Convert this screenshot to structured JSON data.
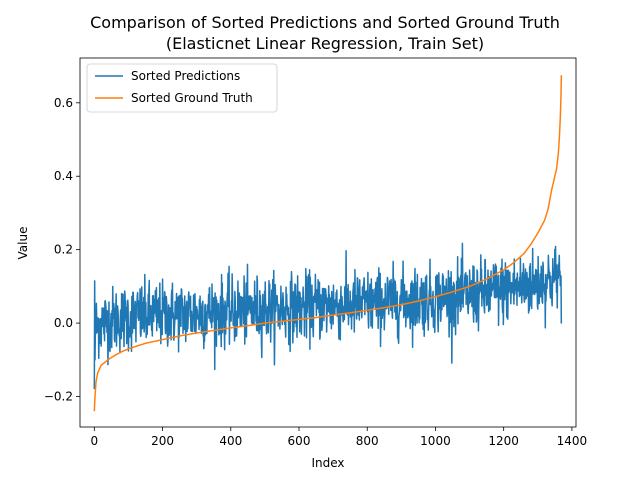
{
  "chart_data": {
    "type": "line",
    "title": "Comparison of Sorted Predictions and Sorted Ground Truth",
    "subtitle": "(Elasticnet Linear Regression, Train Set)",
    "xlabel": "Index",
    "ylabel": "Value",
    "xlim": [
      -42,
      1412
    ],
    "ylim": [
      -0.283,
      0.722
    ],
    "x_ticks": [
      0,
      200,
      400,
      600,
      800,
      1000,
      1200,
      1400
    ],
    "x_tick_labels": [
      "0",
      "200",
      "400",
      "600",
      "800",
      "1000",
      "1200",
      "1400"
    ],
    "y_ticks": [
      -0.2,
      0.0,
      0.2,
      0.4,
      0.6
    ],
    "y_tick_labels": [
      "−0.2",
      "0.0",
      "0.2",
      "0.4",
      "0.6"
    ],
    "legend_position": "top-left",
    "grid": false,
    "n_points": 1370,
    "series": [
      {
        "name": "Sorted Predictions",
        "color": "#1f77b4",
        "x": [
          0,
          5,
          10,
          20,
          40,
          60,
          80,
          100,
          150,
          200,
          250,
          300,
          350,
          400,
          450,
          500,
          550,
          600,
          650,
          700,
          750,
          800,
          850,
          900,
          950,
          1000,
          1050,
          1100,
          1150,
          1200,
          1250,
          1300,
          1340,
          1369
        ],
        "trend": [
          -0.01,
          -0.01,
          -0.005,
          0.0,
          0.005,
          0.01,
          0.012,
          0.015,
          0.02,
          0.022,
          0.025,
          0.027,
          0.03,
          0.032,
          0.035,
          0.037,
          0.04,
          0.042,
          0.045,
          0.048,
          0.05,
          0.053,
          0.056,
          0.06,
          0.063,
          0.068,
          0.072,
          0.077,
          0.082,
          0.09,
          0.1,
          0.11,
          0.12,
          0.13
        ],
        "noise_std": 0.045,
        "max": 0.265,
        "min": -0.175
      },
      {
        "name": "Sorted Ground Truth",
        "color": "#ff7f0e",
        "x": [
          0,
          2,
          5,
          10,
          20,
          40,
          60,
          80,
          100,
          150,
          200,
          250,
          300,
          350,
          400,
          450,
          500,
          550,
          600,
          650,
          700,
          750,
          800,
          850,
          900,
          950,
          1000,
          1050,
          1100,
          1150,
          1200,
          1230,
          1260,
          1280,
          1300,
          1320,
          1330,
          1340,
          1350,
          1355,
          1360,
          1363,
          1366,
          1368,
          1369
        ],
        "y": [
          -0.24,
          -0.2,
          -0.16,
          -0.135,
          -0.115,
          -0.1,
          -0.088,
          -0.078,
          -0.07,
          -0.055,
          -0.045,
          -0.035,
          -0.027,
          -0.02,
          -0.013,
          -0.007,
          0.0,
          0.005,
          0.01,
          0.015,
          0.022,
          0.028,
          0.035,
          0.042,
          0.05,
          0.06,
          0.072,
          0.085,
          0.1,
          0.12,
          0.145,
          0.165,
          0.19,
          0.215,
          0.245,
          0.28,
          0.31,
          0.36,
          0.4,
          0.42,
          0.46,
          0.5,
          0.56,
          0.62,
          0.675
        ]
      }
    ]
  }
}
